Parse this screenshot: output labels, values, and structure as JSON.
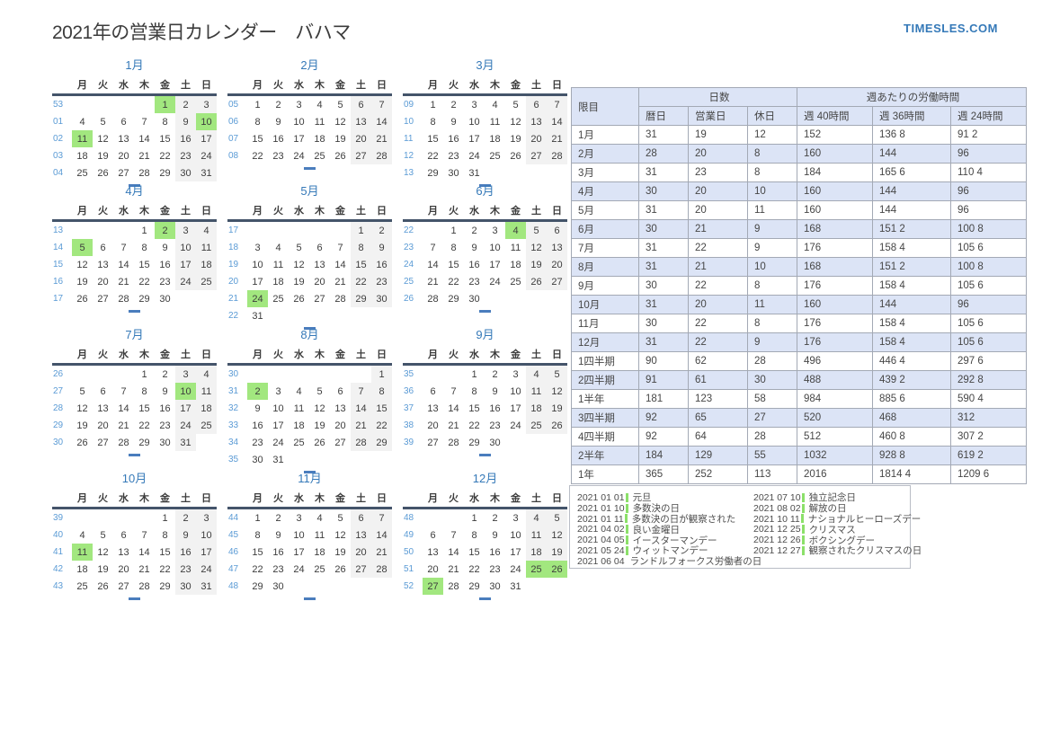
{
  "page": {
    "title": "2021年の営業日カレンダー　バハマ",
    "logo": "TIMESLES.COM"
  },
  "colors": {
    "accent_blue": "#3579b8",
    "weeknum_blue": "#5b9bd5",
    "holiday_green": "#a2e77f",
    "holiday_bar_green": "#8ce06a",
    "weekend_gray": "#f2f2f2",
    "stripe_lavender": "#dce4f6",
    "header_line_navy": "#44546a",
    "table_border_gray": "#a3a9b5"
  },
  "calendar": {
    "weekday_headers": [
      "月",
      "火",
      "水",
      "木",
      "金",
      "土",
      "日"
    ],
    "months": [
      {
        "name": "1月",
        "holidays": [
          1,
          10,
          11
        ],
        "weeks": [
          {
            "num": "53",
            "days": [
              "",
              "",
              "",
              "",
              "1",
              "2",
              "3"
            ]
          },
          {
            "num": "01",
            "days": [
              "4",
              "5",
              "6",
              "7",
              "8",
              "9",
              "10"
            ]
          },
          {
            "num": "02",
            "days": [
              "11",
              "12",
              "13",
              "14",
              "15",
              "16",
              "17"
            ]
          },
          {
            "num": "03",
            "days": [
              "18",
              "19",
              "20",
              "21",
              "22",
              "23",
              "24"
            ]
          },
          {
            "num": "04",
            "days": [
              "25",
              "26",
              "27",
              "28",
              "29",
              "30",
              "31"
            ]
          }
        ]
      },
      {
        "name": "2月",
        "holidays": [],
        "weeks": [
          {
            "num": "05",
            "days": [
              "1",
              "2",
              "3",
              "4",
              "5",
              "6",
              "7"
            ]
          },
          {
            "num": "06",
            "days": [
              "8",
              "9",
              "10",
              "11",
              "12",
              "13",
              "14"
            ]
          },
          {
            "num": "07",
            "days": [
              "15",
              "16",
              "17",
              "18",
              "19",
              "20",
              "21"
            ]
          },
          {
            "num": "08",
            "days": [
              "22",
              "23",
              "24",
              "25",
              "26",
              "27",
              "28"
            ]
          }
        ]
      },
      {
        "name": "3月",
        "holidays": [],
        "weeks": [
          {
            "num": "09",
            "days": [
              "1",
              "2",
              "3",
              "4",
              "5",
              "6",
              "7"
            ]
          },
          {
            "num": "10",
            "days": [
              "8",
              "9",
              "10",
              "11",
              "12",
              "13",
              "14"
            ]
          },
          {
            "num": "11",
            "days": [
              "15",
              "16",
              "17",
              "18",
              "19",
              "20",
              "21"
            ]
          },
          {
            "num": "12",
            "days": [
              "22",
              "23",
              "24",
              "25",
              "26",
              "27",
              "28"
            ]
          },
          {
            "num": "13",
            "days": [
              "29",
              "30",
              "31",
              "",
              "",
              "",
              ""
            ]
          }
        ]
      },
      {
        "name": "4月",
        "holidays": [
          2,
          5
        ],
        "weeks": [
          {
            "num": "13",
            "days": [
              "",
              "",
              "",
              "1",
              "2",
              "3",
              "4"
            ]
          },
          {
            "num": "14",
            "days": [
              "5",
              "6",
              "7",
              "8",
              "9",
              "10",
              "11"
            ]
          },
          {
            "num": "15",
            "days": [
              "12",
              "13",
              "14",
              "15",
              "16",
              "17",
              "18"
            ]
          },
          {
            "num": "16",
            "days": [
              "19",
              "20",
              "21",
              "22",
              "23",
              "24",
              "25"
            ]
          },
          {
            "num": "17",
            "days": [
              "26",
              "27",
              "28",
              "29",
              "30",
              "",
              ""
            ]
          }
        ]
      },
      {
        "name": "5月",
        "holidays": [
          24
        ],
        "weeks": [
          {
            "num": "17",
            "days": [
              "",
              "",
              "",
              "",
              "",
              "1",
              "2"
            ]
          },
          {
            "num": "18",
            "days": [
              "3",
              "4",
              "5",
              "6",
              "7",
              "8",
              "9"
            ]
          },
          {
            "num": "19",
            "days": [
              "10",
              "11",
              "12",
              "13",
              "14",
              "15",
              "16"
            ]
          },
          {
            "num": "20",
            "days": [
              "17",
              "18",
              "19",
              "20",
              "21",
              "22",
              "23"
            ]
          },
          {
            "num": "21",
            "days": [
              "24",
              "25",
              "26",
              "27",
              "28",
              "29",
              "30"
            ]
          },
          {
            "num": "22",
            "days": [
              "31",
              "",
              "",
              "",
              "",
              "",
              ""
            ]
          }
        ]
      },
      {
        "name": "6月",
        "holidays": [
          4
        ],
        "weeks": [
          {
            "num": "22",
            "days": [
              "",
              "1",
              "2",
              "3",
              "4",
              "5",
              "6"
            ]
          },
          {
            "num": "23",
            "days": [
              "7",
              "8",
              "9",
              "10",
              "11",
              "12",
              "13"
            ]
          },
          {
            "num": "24",
            "days": [
              "14",
              "15",
              "16",
              "17",
              "18",
              "19",
              "20"
            ]
          },
          {
            "num": "25",
            "days": [
              "21",
              "22",
              "23",
              "24",
              "25",
              "26",
              "27"
            ]
          },
          {
            "num": "26",
            "days": [
              "28",
              "29",
              "30",
              "",
              "",
              "",
              ""
            ]
          }
        ]
      },
      {
        "name": "7月",
        "holidays": [
          10
        ],
        "weeks": [
          {
            "num": "26",
            "days": [
              "",
              "",
              "",
              "1",
              "2",
              "3",
              "4"
            ]
          },
          {
            "num": "27",
            "days": [
              "5",
              "6",
              "7",
              "8",
              "9",
              "10",
              "11"
            ]
          },
          {
            "num": "28",
            "days": [
              "12",
              "13",
              "14",
              "15",
              "16",
              "17",
              "18"
            ]
          },
          {
            "num": "29",
            "days": [
              "19",
              "20",
              "21",
              "22",
              "23",
              "24",
              "25"
            ]
          },
          {
            "num": "30",
            "days": [
              "26",
              "27",
              "28",
              "29",
              "30",
              "31",
              ""
            ]
          }
        ]
      },
      {
        "name": "8月",
        "holidays": [
          2
        ],
        "weeks": [
          {
            "num": "30",
            "days": [
              "",
              "",
              "",
              "",
              "",
              "",
              "1"
            ]
          },
          {
            "num": "31",
            "days": [
              "2",
              "3",
              "4",
              "5",
              "6",
              "7",
              "8"
            ]
          },
          {
            "num": "32",
            "days": [
              "9",
              "10",
              "11",
              "12",
              "13",
              "14",
              "15"
            ]
          },
          {
            "num": "33",
            "days": [
              "16",
              "17",
              "18",
              "19",
              "20",
              "21",
              "22"
            ]
          },
          {
            "num": "34",
            "days": [
              "23",
              "24",
              "25",
              "26",
              "27",
              "28",
              "29"
            ]
          },
          {
            "num": "35",
            "days": [
              "30",
              "31",
              "",
              "",
              "",
              "",
              ""
            ]
          }
        ]
      },
      {
        "name": "9月",
        "holidays": [],
        "weeks": [
          {
            "num": "35",
            "days": [
              "",
              "",
              "1",
              "2",
              "3",
              "4",
              "5"
            ]
          },
          {
            "num": "36",
            "days": [
              "6",
              "7",
              "8",
              "9",
              "10",
              "11",
              "12"
            ]
          },
          {
            "num": "37",
            "days": [
              "13",
              "14",
              "15",
              "16",
              "17",
              "18",
              "19"
            ]
          },
          {
            "num": "38",
            "days": [
              "20",
              "21",
              "22",
              "23",
              "24",
              "25",
              "26"
            ]
          },
          {
            "num": "39",
            "days": [
              "27",
              "28",
              "29",
              "30",
              "",
              "",
              ""
            ]
          }
        ]
      },
      {
        "name": "10月",
        "holidays": [
          11
        ],
        "weeks": [
          {
            "num": "39",
            "days": [
              "",
              "",
              "",
              "",
              "1",
              "2",
              "3"
            ]
          },
          {
            "num": "40",
            "days": [
              "4",
              "5",
              "6",
              "7",
              "8",
              "9",
              "10"
            ]
          },
          {
            "num": "41",
            "days": [
              "11",
              "12",
              "13",
              "14",
              "15",
              "16",
              "17"
            ]
          },
          {
            "num": "42",
            "days": [
              "18",
              "19",
              "20",
              "21",
              "22",
              "23",
              "24"
            ]
          },
          {
            "num": "43",
            "days": [
              "25",
              "26",
              "27",
              "28",
              "29",
              "30",
              "31"
            ]
          }
        ]
      },
      {
        "name": "11月",
        "holidays": [],
        "weeks": [
          {
            "num": "44",
            "days": [
              "1",
              "2",
              "3",
              "4",
              "5",
              "6",
              "7"
            ]
          },
          {
            "num": "45",
            "days": [
              "8",
              "9",
              "10",
              "11",
              "12",
              "13",
              "14"
            ]
          },
          {
            "num": "46",
            "days": [
              "15",
              "16",
              "17",
              "18",
              "19",
              "20",
              "21"
            ]
          },
          {
            "num": "47",
            "days": [
              "22",
              "23",
              "24",
              "25",
              "26",
              "27",
              "28"
            ]
          },
          {
            "num": "48",
            "days": [
              "29",
              "30",
              "",
              "",
              "",
              "",
              ""
            ]
          }
        ]
      },
      {
        "name": "12月",
        "holidays": [
          25,
          26,
          27
        ],
        "weeks": [
          {
            "num": "48",
            "days": [
              "",
              "",
              "1",
              "2",
              "3",
              "4",
              "5"
            ]
          },
          {
            "num": "49",
            "days": [
              "6",
              "7",
              "8",
              "9",
              "10",
              "11",
              "12"
            ]
          },
          {
            "num": "50",
            "days": [
              "13",
              "14",
              "15",
              "16",
              "17",
              "18",
              "19"
            ]
          },
          {
            "num": "51",
            "days": [
              "20",
              "21",
              "22",
              "23",
              "24",
              "25",
              "26"
            ]
          },
          {
            "num": "52",
            "days": [
              "27",
              "28",
              "29",
              "30",
              "31",
              "",
              ""
            ]
          }
        ]
      }
    ]
  },
  "stats_table": {
    "corner_header": "限目",
    "group_headers": [
      "日数",
      "週あたりの労働時間"
    ],
    "sub_headers": [
      "暦日",
      "営業日",
      "休日",
      "週 40時間",
      "週 36時間",
      "週 24時間"
    ],
    "rows": [
      {
        "label": "1月",
        "values": [
          "31",
          "19",
          "12",
          "152",
          "136 8",
          "91 2"
        ]
      },
      {
        "label": "2月",
        "values": [
          "28",
          "20",
          "8",
          "160",
          "144",
          "96"
        ]
      },
      {
        "label": "3月",
        "values": [
          "31",
          "23",
          "8",
          "184",
          "165 6",
          "110 4"
        ]
      },
      {
        "label": "4月",
        "values": [
          "30",
          "20",
          "10",
          "160",
          "144",
          "96"
        ]
      },
      {
        "label": "5月",
        "values": [
          "31",
          "20",
          "11",
          "160",
          "144",
          "96"
        ]
      },
      {
        "label": "6月",
        "values": [
          "30",
          "21",
          "9",
          "168",
          "151 2",
          "100 8"
        ]
      },
      {
        "label": "7月",
        "values": [
          "31",
          "22",
          "9",
          "176",
          "158 4",
          "105 6"
        ]
      },
      {
        "label": "8月",
        "values": [
          "31",
          "21",
          "10",
          "168",
          "151 2",
          "100 8"
        ]
      },
      {
        "label": "9月",
        "values": [
          "30",
          "22",
          "8",
          "176",
          "158 4",
          "105 6"
        ]
      },
      {
        "label": "10月",
        "values": [
          "31",
          "20",
          "11",
          "160",
          "144",
          "96"
        ]
      },
      {
        "label": "11月",
        "values": [
          "30",
          "22",
          "8",
          "176",
          "158 4",
          "105 6"
        ]
      },
      {
        "label": "12月",
        "values": [
          "31",
          "22",
          "9",
          "176",
          "158 4",
          "105 6"
        ]
      },
      {
        "label": "1四半期",
        "values": [
          "90",
          "62",
          "28",
          "496",
          "446 4",
          "297 6"
        ]
      },
      {
        "label": "2四半期",
        "values": [
          "91",
          "61",
          "30",
          "488",
          "439 2",
          "292 8"
        ]
      },
      {
        "label": "1半年",
        "values": [
          "181",
          "123",
          "58",
          "984",
          "885 6",
          "590 4"
        ]
      },
      {
        "label": "3四半期",
        "values": [
          "92",
          "65",
          "27",
          "520",
          "468",
          "312"
        ]
      },
      {
        "label": "4四半期",
        "values": [
          "92",
          "64",
          "28",
          "512",
          "460 8",
          "307 2"
        ]
      },
      {
        "label": "2半年",
        "values": [
          "184",
          "129",
          "55",
          "1032",
          "928 8",
          "619 2"
        ]
      },
      {
        "label": "1年",
        "values": [
          "365",
          "252",
          "113",
          "2016",
          "1814 4",
          "1209 6"
        ]
      }
    ]
  },
  "holidays_box": {
    "columns": [
      [
        {
          "date": "2021 01 01",
          "name": "元旦"
        },
        {
          "date": "2021 01 10",
          "name": "多数決の日"
        },
        {
          "date": "2021 01 11",
          "name": "多数決の日が観察された"
        },
        {
          "date": "2021 04 02",
          "name": "良い金曜日"
        },
        {
          "date": "2021 04 05",
          "name": "イースターマンデー"
        },
        {
          "date": "2021 05 24",
          "name": "ウィットマンデー"
        },
        {
          "date": "2021 06 04",
          "name": "ランドルフォークス労働者の日"
        }
      ],
      [
        {
          "date": "2021 07 10",
          "name": "独立記念日"
        },
        {
          "date": "2021 08 02",
          "name": "解放の日"
        },
        {
          "date": "2021 10 11",
          "name": "ナショナルヒーローズデー"
        },
        {
          "date": "2021 12 25",
          "name": "クリスマス"
        },
        {
          "date": "2021 12 26",
          "name": "ボクシングデー"
        },
        {
          "date": "2021 12 27",
          "name": "観察されたクリスマスの日"
        }
      ]
    ]
  }
}
